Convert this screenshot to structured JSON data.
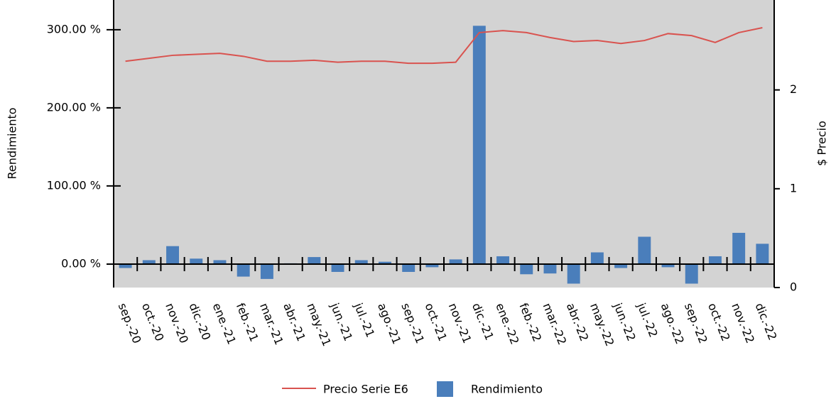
{
  "chart_data": {
    "type": "bar_line",
    "categories": [
      "sep.-20",
      "oct.-20",
      "nov.-20",
      "dic.-20",
      "ene.-21",
      "feb.-21",
      "mar.-21",
      "abr.-21",
      "may.-21",
      "jun.-21",
      "jul.-21",
      "ago.-21",
      "sep.-21",
      "oct.-21",
      "nov.-21",
      "dic.-21",
      "ene.-22",
      "feb.-22",
      "mar.-22",
      "abr.-22",
      "may.-22",
      "jun.-22",
      "jul.-22",
      "ago.-22",
      "sep.-22",
      "oct.-22",
      "nov.-22",
      "dic.-22"
    ],
    "y_label": "Rendimiento",
    "y2_label": "$ Precio",
    "ylim": [
      -30,
      338
    ],
    "yticks": [
      {
        "value": 0,
        "label": "0.00 %"
      },
      {
        "value": 100,
        "label": "100.00 %"
      },
      {
        "value": 200,
        "label": "200.00 %"
      },
      {
        "value": 300,
        "label": "300.00 %"
      }
    ],
    "y2lim": [
      0,
      2.91
    ],
    "y2ticks": [
      0,
      1,
      2
    ],
    "series": [
      {
        "name": "Precio Serie E6",
        "type": "line",
        "axis": "y2",
        "color": "#d9534f",
        "values": [
          2.29,
          2.32,
          2.35,
          2.36,
          2.37,
          2.34,
          2.29,
          2.29,
          2.3,
          2.28,
          2.29,
          2.29,
          2.27,
          2.27,
          2.28,
          2.58,
          2.6,
          2.58,
          2.53,
          2.49,
          2.5,
          2.47,
          2.5,
          2.57,
          2.55,
          2.48,
          2.58,
          2.63
        ]
      },
      {
        "name": "Rendimiento",
        "type": "bar",
        "color": "#4a7ebb",
        "values": [
          -5,
          5,
          23,
          7,
          5,
          -16,
          -19,
          1,
          9,
          -10,
          5,
          3,
          -10,
          -4,
          6,
          305,
          10,
          -13,
          -12,
          -25,
          15,
          -5,
          35,
          -4,
          -25,
          10,
          40,
          26
        ]
      }
    ]
  }
}
